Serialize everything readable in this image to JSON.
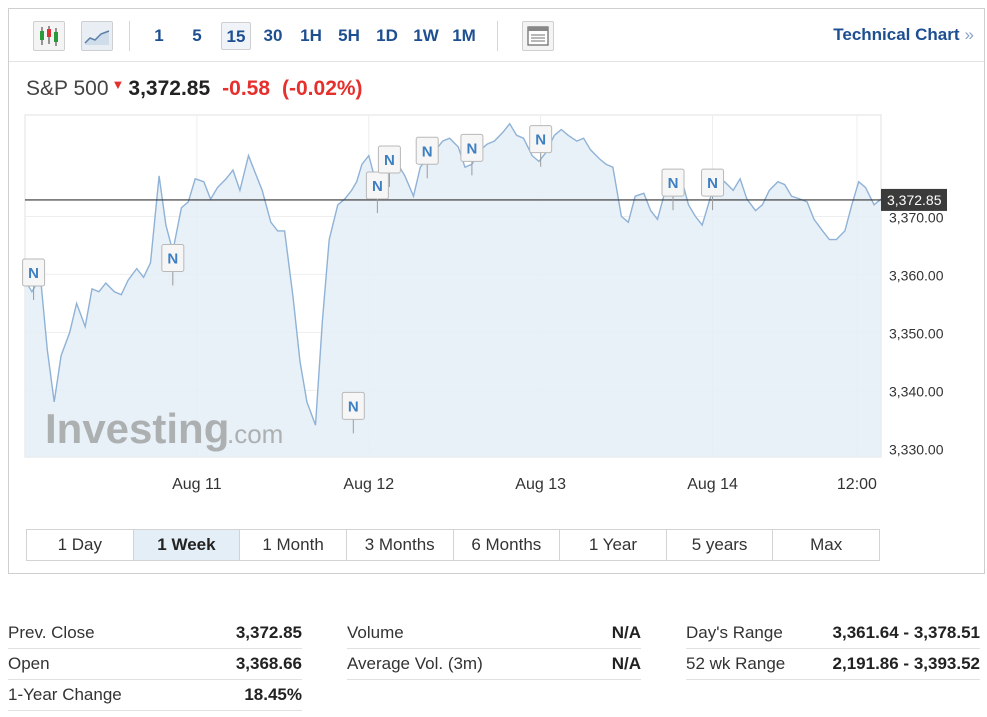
{
  "toolbar": {
    "icons": [
      "candlestick-chart-icon",
      "area-chart-icon",
      "indicators-panel-icon"
    ],
    "intervals": [
      "1",
      "5",
      "15",
      "30",
      "1H",
      "5H",
      "1D",
      "1W",
      "1M"
    ],
    "active_interval": "15",
    "technical_chart_label": "Technical Chart",
    "technical_chart_arrow": "»"
  },
  "quote": {
    "name": "S&P 500",
    "direction_icon": "down-triangle",
    "last": "3,372.85",
    "change": "-0.58",
    "change_pct": "(-0.02%)"
  },
  "watermark": {
    "brand": "Investing",
    "suffix": ".com"
  },
  "colors": {
    "line": "#8fb2d6",
    "fill": "#e4eef7",
    "down": "#e5302d",
    "accent": "#1d4f91"
  },
  "chart_data": {
    "type": "area",
    "yticks": [
      "3,370.00",
      "3,360.00",
      "3,350.00",
      "3,340.00",
      "3,330.00"
    ],
    "ytick_values": [
      3370,
      3360,
      3350,
      3340,
      3330
    ],
    "xticks": [
      {
        "label": "Aug 11",
        "x": 1.0
      },
      {
        "label": "Aug 12",
        "x": 2.0
      },
      {
        "label": "Aug 13",
        "x": 3.0
      },
      {
        "label": "Aug 14",
        "x": 4.0
      },
      {
        "label": "12:00",
        "x": 4.84
      }
    ],
    "ylim": [
      3328.5,
      3387.5
    ],
    "xlim": [
      0,
      4.98
    ],
    "last_price_line": 3372.85,
    "last_price_label": "3,372.85",
    "news_markers": [
      {
        "x": 0.05,
        "y": 3358.0,
        "label": "N"
      },
      {
        "x": 0.86,
        "y": 3360.5,
        "label": "N"
      },
      {
        "x": 1.91,
        "y": 3335.0,
        "label": "N"
      },
      {
        "x": 2.05,
        "y": 3373.0,
        "label": "N"
      },
      {
        "x": 2.12,
        "y": 3377.5,
        "label": "N"
      },
      {
        "x": 2.34,
        "y": 3379.0,
        "label": "N"
      },
      {
        "x": 2.6,
        "y": 3379.5,
        "label": "N"
      },
      {
        "x": 3.0,
        "y": 3381.0,
        "label": "N"
      },
      {
        "x": 3.77,
        "y": 3373.5,
        "label": "N"
      },
      {
        "x": 4.0,
        "y": 3373.5,
        "label": "N"
      }
    ],
    "series": [
      {
        "x": [
          0.0,
          0.04,
          0.09,
          0.13,
          0.17,
          0.21,
          0.26,
          0.3,
          0.35,
          0.39,
          0.43,
          0.47,
          0.52,
          0.56,
          0.6,
          0.65,
          0.69,
          0.73,
          0.78,
          0.82,
          0.86,
          0.91,
          0.95,
          0.99,
          1.04,
          1.08,
          1.12,
          1.17,
          1.21,
          1.25,
          1.3,
          1.34,
          1.38,
          1.43,
          1.47,
          1.51,
          1.56,
          1.6,
          1.64,
          1.69,
          1.73,
          1.77,
          1.82,
          1.86,
          1.9,
          1.93,
          1.96,
          2.0,
          2.04,
          2.08,
          2.13,
          2.17,
          2.21,
          2.26,
          2.3,
          2.34,
          2.39,
          2.43,
          2.47,
          2.52,
          2.56,
          2.6,
          2.65,
          2.69,
          2.73,
          2.78,
          2.82,
          2.86,
          2.9,
          2.95,
          2.99,
          3.03,
          3.08,
          3.12,
          3.16,
          3.21,
          3.25,
          3.29,
          3.34,
          3.38,
          3.42,
          3.47,
          3.51,
          3.55,
          3.6,
          3.64,
          3.68,
          3.73,
          3.77,
          3.81,
          3.86,
          3.9,
          3.94,
          3.99,
          4.03,
          4.07,
          4.12,
          4.16,
          4.2,
          4.25,
          4.29,
          4.33,
          4.38,
          4.42,
          4.46,
          4.51,
          4.55,
          4.59,
          4.64,
          4.68,
          4.72,
          4.77,
          4.81,
          4.85,
          4.89,
          4.94,
          4.98
        ],
        "values": [
          3359.0,
          3357.0,
          3359.5,
          3347.0,
          3338.0,
          3346.0,
          3350.0,
          3355.0,
          3351.0,
          3357.5,
          3357.0,
          3358.5,
          3357.0,
          3356.5,
          3359.0,
          3361.0,
          3359.5,
          3362.0,
          3377.0,
          3368.5,
          3364.0,
          3371.5,
          3372.5,
          3376.5,
          3376.0,
          3373.0,
          3375.0,
          3376.5,
          3378.0,
          3374.5,
          3380.5,
          3377.5,
          3374.5,
          3369.0,
          3367.5,
          3367.5,
          3356.0,
          3345.0,
          3338.0,
          3334.0,
          3352.0,
          3366.0,
          3372.0,
          3373.0,
          3374.5,
          3376.0,
          3379.0,
          3380.5,
          3376.0,
          3377.5,
          3380.0,
          3379.0,
          3377.0,
          3373.5,
          3378.5,
          3380.0,
          3381.5,
          3383.0,
          3383.5,
          3382.0,
          3378.5,
          3379.0,
          3381.5,
          3382.5,
          3383.0,
          3384.5,
          3386.0,
          3384.0,
          3383.5,
          3380.5,
          3379.5,
          3381.0,
          3384.0,
          3385.0,
          3384.0,
          3383.0,
          3383.5,
          3381.5,
          3380.0,
          3379.0,
          3378.5,
          3370.0,
          3369.0,
          3373.5,
          3374.0,
          3371.0,
          3369.5,
          3375.0,
          3377.0,
          3377.5,
          3372.0,
          3370.0,
          3368.5,
          3373.5,
          3375.5,
          3376.0,
          3374.5,
          3376.5,
          3373.0,
          3371.0,
          3372.0,
          3374.5,
          3376.0,
          3375.5,
          3373.5,
          3373.0,
          3372.5,
          3369.5,
          3367.5,
          3366.0,
          3366.0,
          3367.5,
          3372.0,
          3376.0,
          3375.0,
          3372.0,
          3373.0
        ]
      }
    ]
  },
  "ranges": {
    "items": [
      "1 Day",
      "1 Week",
      "1 Month",
      "3 Months",
      "6 Months",
      "1 Year",
      "5 years",
      "Max"
    ],
    "active": "1 Week"
  },
  "stats": [
    [
      {
        "label": "Prev. Close",
        "value": "3,372.85"
      },
      {
        "label": "Open",
        "value": "3,368.66"
      },
      {
        "label": "1-Year Change",
        "value": "18.45%"
      }
    ],
    [
      {
        "label": "Volume",
        "value": "N/A"
      },
      {
        "label": "Average Vol. (3m)",
        "value": "N/A"
      }
    ],
    [
      {
        "label": "Day's Range",
        "value": "3,361.64 - 3,378.51"
      },
      {
        "label": "52 wk Range",
        "value": "2,191.86 - 3,393.52"
      }
    ]
  ]
}
